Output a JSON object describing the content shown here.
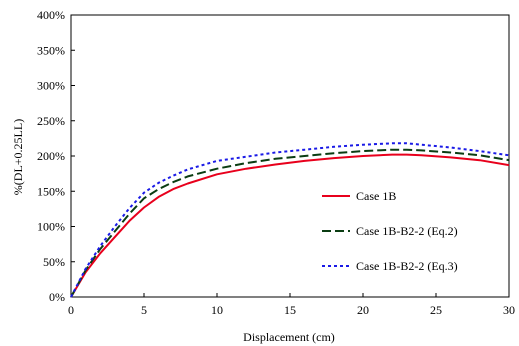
{
  "chart_data": {
    "type": "line",
    "title": "",
    "xlabel": "Displacement (cm)",
    "ylabel": "%(DL+0.25LL)",
    "xlim": [
      0,
      30
    ],
    "ylim": [
      0,
      400
    ],
    "x_ticks": [
      0,
      5,
      10,
      15,
      20,
      25,
      30
    ],
    "y_ticks": [
      0,
      50,
      100,
      150,
      200,
      250,
      300,
      350,
      400
    ],
    "x_tick_labels": [
      "0",
      "5",
      "10",
      "15",
      "20",
      "25",
      "30"
    ],
    "y_tick_labels": [
      "0%",
      "50%",
      "100%",
      "150%",
      "200%",
      "250%",
      "300%",
      "350%",
      "400%"
    ],
    "grid": false,
    "legend_position": "right",
    "series": [
      {
        "name": "Case 1B",
        "color": "#e8001c",
        "style": "solid",
        "x": [
          0,
          1,
          2,
          3,
          4,
          5,
          6,
          7,
          8,
          10,
          12,
          14,
          16,
          18,
          20,
          22,
          23,
          24,
          26,
          28,
          30
        ],
        "y": [
          0,
          35,
          62,
          85,
          108,
          127,
          142,
          153,
          161,
          174,
          182,
          188,
          193,
          197,
          200,
          202,
          202,
          201,
          198,
          194,
          187
        ]
      },
      {
        "name": "Case 1B-B2-2 (Eq.2)",
        "color": "#0a3d12",
        "style": "dashed",
        "x": [
          0,
          1,
          2,
          3,
          4,
          5,
          6,
          7,
          8,
          10,
          12,
          14,
          16,
          18,
          20,
          22,
          23,
          24,
          26,
          28,
          30
        ],
        "y": [
          0,
          38,
          68,
          93,
          118,
          140,
          153,
          163,
          171,
          182,
          190,
          196,
          200,
          204,
          207,
          209,
          209,
          208,
          205,
          201,
          194
        ]
      },
      {
        "name": "Case 1B-B2-2 (Eq.3)",
        "color": "#1a1ae6",
        "style": "dotted",
        "x": [
          0,
          1,
          2,
          3,
          4,
          5,
          6,
          7,
          8,
          10,
          12,
          14,
          16,
          18,
          20,
          22,
          23,
          24,
          26,
          28,
          30
        ],
        "y": [
          0,
          40,
          72,
          100,
          126,
          148,
          162,
          172,
          181,
          193,
          199,
          205,
          209,
          213,
          216,
          218,
          218,
          216,
          212,
          207,
          201
        ]
      }
    ]
  }
}
